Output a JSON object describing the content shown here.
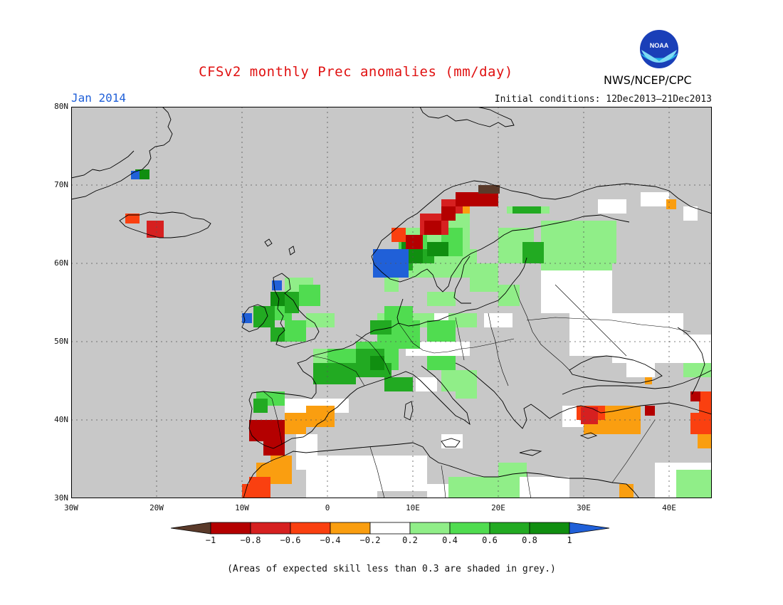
{
  "header": {
    "title": "CFSv2 monthly Prec anomalies (mm/day)",
    "month": "Jan 2014",
    "initial_conditions": "Initial conditions: 12Dec2013–21Dec2013",
    "agency": "NWS/NCEP/CPC",
    "logo_text": "NOAA"
  },
  "map": {
    "lon_range": [
      -30,
      45
    ],
    "lat_range": [
      30,
      80
    ],
    "lat_labels": [
      "80N",
      "70N",
      "60N",
      "50N",
      "40N",
      "30N"
    ],
    "lon_labels": [
      "30W",
      "20W",
      "10W",
      "0",
      "10E",
      "20E",
      "30E",
      "40E"
    ],
    "background_color": "#c8c8c8"
  },
  "legend": {
    "tick_labels": [
      "−1",
      "−0.8",
      "−0.6",
      "−0.4",
      "−0.2",
      "0.2",
      "0.4",
      "0.6",
      "0.8",
      "1"
    ],
    "colors": [
      "#5a3a2a",
      "#b40000",
      "#d62020",
      "#fa4010",
      "#fa9e10",
      "#ffffff",
      "#90ee88",
      "#50dc50",
      "#22aa22",
      "#108e10",
      "#2060d8"
    ]
  },
  "footnote": "(Areas of expected skill less than 0.3 are shaded in grey.)"
}
